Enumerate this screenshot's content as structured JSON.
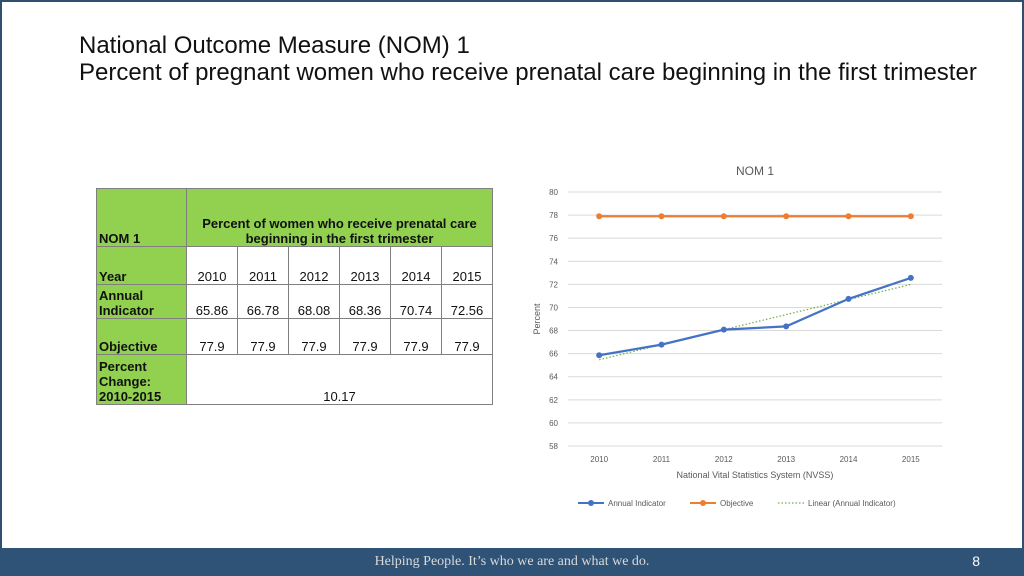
{
  "slide": {
    "title_line1": "National Outcome Measure (NOM) 1",
    "title_line2": "Percent of pregnant women who receive prenatal care beginning in the first trimester",
    "footer_text": "Helping People.  It’s who we are and what we do.",
    "page_number": "8"
  },
  "table": {
    "corner_label": "NOM 1",
    "header": "Percent of women who receive prenatal care beginning in the first trimester",
    "year_label": "Year",
    "years": [
      "2010",
      "2011",
      "2012",
      "2013",
      "2014",
      "2015"
    ],
    "annual_label": "Annual Indicator",
    "annual": [
      "65.86",
      "66.78",
      "68.08",
      "68.36",
      "70.74",
      "72.56"
    ],
    "objective_label": "Objective",
    "objective": [
      "77.9",
      "77.9",
      "77.9",
      "77.9",
      "77.9",
      "77.9"
    ],
    "pct_change_label": "Percent Change: 2010-2015",
    "pct_change_value": "10.17"
  },
  "chart_data": {
    "type": "line",
    "title": "NOM 1",
    "xlabel": "National Vital Statistics System (NVSS)",
    "ylabel": "Percent",
    "categories": [
      "2010",
      "2011",
      "2012",
      "2013",
      "2014",
      "2015"
    ],
    "ylim": [
      58,
      80
    ],
    "ytick_step": 2,
    "grid": true,
    "legend_position": "bottom",
    "series": [
      {
        "name": "Annual Indicator",
        "values": [
          65.86,
          66.78,
          68.08,
          68.36,
          70.74,
          72.56
        ],
        "color": "#4472c4",
        "style": "line-markers"
      },
      {
        "name": "Objective",
        "values": [
          77.9,
          77.9,
          77.9,
          77.9,
          77.9,
          77.9
        ],
        "color": "#ed7d31",
        "style": "line-markers"
      },
      {
        "name": "Linear (Annual Indicator)",
        "color": "#70ad47",
        "style": "dotted-trend",
        "trend_of": "Annual Indicator"
      }
    ]
  },
  "colors": {
    "table_header_bg": "#92d050",
    "footer_bg": "#2f5377",
    "frame_border": "#2f4f6f"
  }
}
